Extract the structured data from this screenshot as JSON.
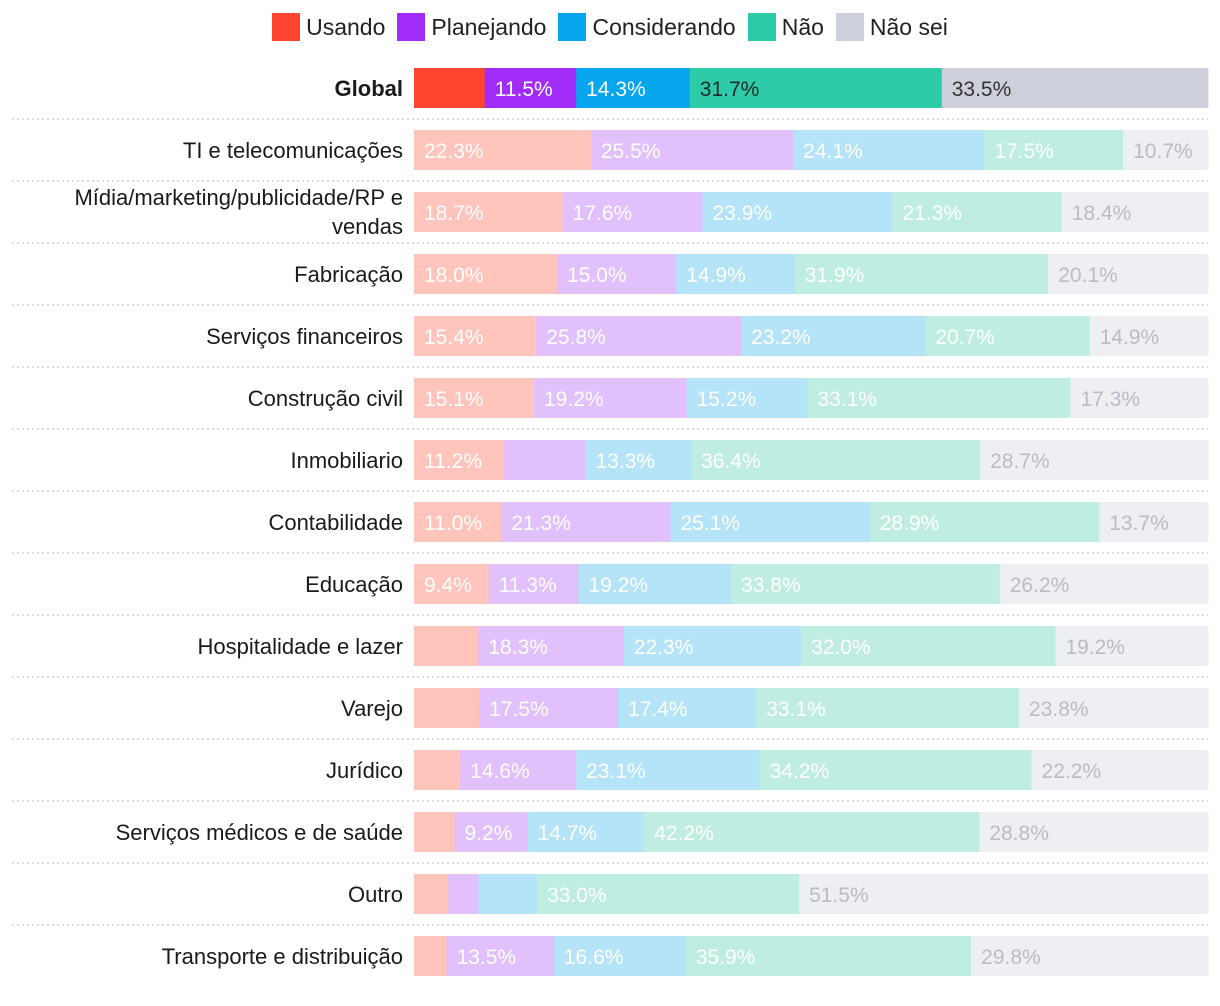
{
  "chart_data": {
    "type": "stacked-bar-horizontal",
    "title": "",
    "legend": [
      {
        "name": "Usando",
        "color": "#ff4530",
        "faded": "#ffc4bc"
      },
      {
        "name": "Planejando",
        "color": "#a12cf7",
        "faded": "#e1c0fb"
      },
      {
        "name": "Considerando",
        "color": "#06a6ee",
        "faded": "#b5e3f8"
      },
      {
        "name": "Não",
        "color": "#2ecba9",
        "faded": "#c0ede2"
      },
      {
        "name": "Não sei",
        "color": "#cdd0da",
        "faded": "#eeeff2"
      }
    ],
    "rows": [
      {
        "label": "Global",
        "highlight": true,
        "values": [
          8.9,
          11.5,
          14.3,
          31.7,
          33.5
        ],
        "show": [
          false,
          true,
          true,
          true,
          true
        ]
      },
      {
        "label": "TI e telecomunicações",
        "values": [
          22.3,
          25.5,
          24.1,
          17.5,
          10.7
        ],
        "show": [
          true,
          true,
          true,
          true,
          true
        ]
      },
      {
        "label": "Mídia/marketing/publicidade/RP e vendas",
        "label_lines": [
          "Mídia/marketing/publicidade/RP e",
          "vendas"
        ],
        "values": [
          18.7,
          17.6,
          23.9,
          21.3,
          18.4
        ],
        "show": [
          true,
          true,
          true,
          true,
          true
        ]
      },
      {
        "label": "Fabricação",
        "values": [
          18.0,
          15.0,
          14.9,
          31.9,
          20.1
        ],
        "show": [
          true,
          true,
          true,
          true,
          true
        ]
      },
      {
        "label": "Serviços financeiros",
        "values": [
          15.4,
          25.8,
          23.2,
          20.7,
          14.9
        ],
        "show": [
          true,
          true,
          true,
          true,
          true
        ]
      },
      {
        "label": "Construção civil",
        "values": [
          15.1,
          19.2,
          15.2,
          33.1,
          17.3
        ],
        "show": [
          true,
          true,
          true,
          true,
          true
        ]
      },
      {
        "label": "Inmobiliario",
        "values": [
          11.2,
          10.4,
          13.3,
          36.4,
          28.7
        ],
        "show": [
          true,
          false,
          true,
          true,
          true
        ]
      },
      {
        "label": "Contabilidade",
        "values": [
          11.0,
          21.3,
          25.1,
          28.9,
          13.7
        ],
        "show": [
          true,
          true,
          true,
          true,
          true
        ]
      },
      {
        "label": "Educação",
        "values": [
          9.4,
          11.3,
          19.2,
          33.8,
          26.2
        ],
        "show": [
          true,
          true,
          true,
          true,
          true
        ]
      },
      {
        "label": "Hospitalidade e lazer",
        "values": [
          8.1,
          18.3,
          22.3,
          32.0,
          19.2
        ],
        "show": [
          false,
          true,
          true,
          true,
          true
        ]
      },
      {
        "label": "Varejo",
        "values": [
          8.2,
          17.5,
          17.4,
          33.1,
          23.8
        ],
        "show": [
          false,
          true,
          true,
          true,
          true
        ]
      },
      {
        "label": "Jurídico",
        "values": [
          5.8,
          14.6,
          23.1,
          34.2,
          22.2
        ],
        "show": [
          false,
          true,
          true,
          true,
          true
        ]
      },
      {
        "label": "Serviços médicos e de saúde",
        "values": [
          5.1,
          9.2,
          14.7,
          42.2,
          28.8
        ],
        "show": [
          false,
          true,
          true,
          true,
          true
        ]
      },
      {
        "label": "Outro",
        "values": [
          4.3,
          3.8,
          7.4,
          33.0,
          51.5
        ],
        "show": [
          false,
          false,
          false,
          true,
          true
        ]
      },
      {
        "label": "Transporte e distribuição",
        "values": [
          4.1,
          13.5,
          16.6,
          35.9,
          29.8
        ],
        "show": [
          false,
          true,
          true,
          true,
          true
        ]
      }
    ]
  }
}
